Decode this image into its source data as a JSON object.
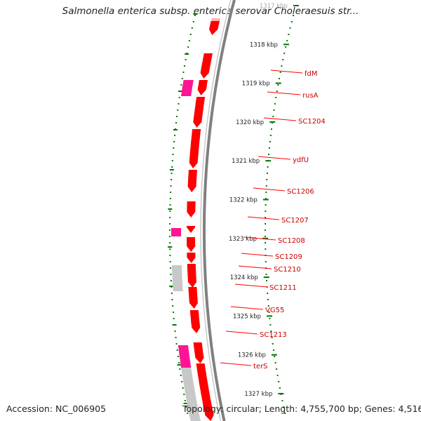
{
  "title": "Salmonella enterica subsp. enterica serovar Choleraesuis str...",
  "footer": {
    "accession": "Accession: NC_006905",
    "summary": "Topology: circular; Length: 4,755,700 bp; Genes: 4,516"
  },
  "colors": {
    "cds": "#ff0000",
    "cds_light": "#ffb3b3",
    "rna": "#ff1493",
    "pseudo": "#c8c8c8",
    "backbone": "#808080",
    "tick": "#007700",
    "label_line": "#ff0000"
  },
  "ruler": {
    "unit": "kbp",
    "ticks": [
      {
        "kbp": 1317,
        "label": "1317 kbp"
      },
      {
        "kbp": 1318,
        "label": "1318 kbp"
      },
      {
        "kbp": 1319,
        "label": "1319 kbp"
      },
      {
        "kbp": 1320,
        "label": "1320 kbp"
      },
      {
        "kbp": 1321,
        "label": "1321 kbp"
      },
      {
        "kbp": 1322,
        "label": "1322 kbp"
      },
      {
        "kbp": 1323,
        "label": "1323 kbp"
      },
      {
        "kbp": 1324,
        "label": "1324 kbp"
      },
      {
        "kbp": 1325,
        "label": "1325 kbp"
      },
      {
        "kbp": 1326,
        "label": "1326 kbp"
      },
      {
        "kbp": 1327,
        "label": "1327 kbp"
      }
    ]
  },
  "genes": [
    {
      "label": "fdM",
      "type": "cds"
    },
    {
      "label": "rusA",
      "type": "rna"
    },
    {
      "label": "SC1204",
      "type": "cds"
    },
    {
      "label": "ydfU",
      "type": "cds"
    },
    {
      "label": "SC1206",
      "type": "cds"
    },
    {
      "label": "SC1207",
      "type": "cds"
    },
    {
      "label": "SC1208",
      "type": "rna"
    },
    {
      "label": "SC1209",
      "type": "cds"
    },
    {
      "label": "SC1210",
      "type": "cds"
    },
    {
      "label": "SC1211",
      "type": "pseudo"
    },
    {
      "label": "VG55",
      "type": "cds"
    },
    {
      "label": "SC1213",
      "type": "cds"
    },
    {
      "label": "terS",
      "type": "rna"
    }
  ]
}
